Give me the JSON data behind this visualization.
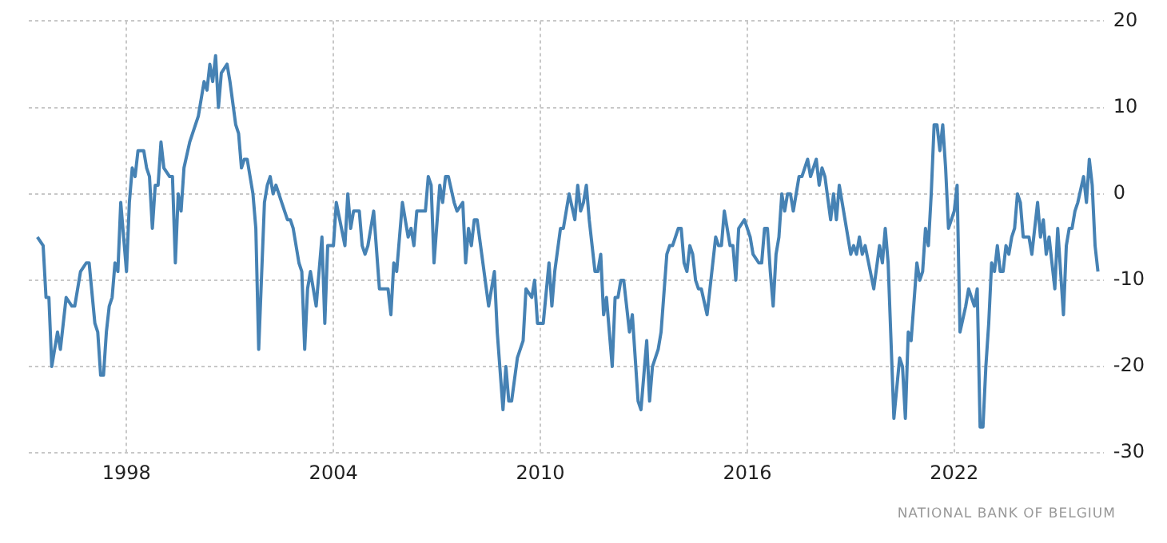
{
  "chart_data": {
    "type": "line",
    "x": [
      "1995-06",
      "1995-08",
      "1995-09",
      "1995-10",
      "1995-11",
      "1996-01",
      "1996-02",
      "1996-04",
      "1996-06",
      "1996-07",
      "1996-09",
      "1996-11",
      "1996-12",
      "1997-02",
      "1997-03",
      "1997-04",
      "1997-05",
      "1997-06",
      "1997-07",
      "1997-08",
      "1997-09",
      "1997-10",
      "1997-11",
      "1997-12",
      "1998-01",
      "1998-02",
      "1998-03",
      "1998-04",
      "1998-05",
      "1998-07",
      "1998-08",
      "1998-09",
      "1998-10",
      "1998-11",
      "1998-12",
      "1999-01",
      "1999-02",
      "1999-04",
      "1999-05",
      "1999-06",
      "1999-07",
      "1999-08",
      "1999-09",
      "1999-11",
      "2000-01",
      "2000-02",
      "2000-04",
      "2000-05",
      "2000-06",
      "2000-07",
      "2000-08",
      "2000-09",
      "2000-10",
      "2000-12",
      "2001-01",
      "2001-03",
      "2001-04",
      "2001-05",
      "2001-06",
      "2001-07",
      "2001-09",
      "2001-10",
      "2001-11",
      "2002-01",
      "2002-02",
      "2002-03",
      "2002-04",
      "2002-05",
      "2002-06",
      "2002-07",
      "2002-09",
      "2002-10",
      "2002-11",
      "2003-01",
      "2003-02",
      "2003-03",
      "2003-04",
      "2003-05",
      "2003-07",
      "2003-09",
      "2003-10",
      "2003-11",
      "2004-01",
      "2004-02",
      "2004-05",
      "2004-06",
      "2004-07",
      "2004-08",
      "2004-10",
      "2004-11",
      "2004-12",
      "2005-01",
      "2005-03",
      "2005-05",
      "2005-08",
      "2005-09",
      "2005-10",
      "2005-11",
      "2006-01",
      "2006-03",
      "2006-04",
      "2006-05",
      "2006-06",
      "2006-09",
      "2006-10",
      "2006-11",
      "2006-12",
      "2007-02",
      "2007-03",
      "2007-04",
      "2007-05",
      "2007-07",
      "2007-08",
      "2007-10",
      "2007-11",
      "2007-12",
      "2008-01",
      "2008-02",
      "2008-03",
      "2008-05",
      "2008-07",
      "2008-09",
      "2008-10",
      "2008-12",
      "2009-01",
      "2009-02",
      "2009-03",
      "2009-05",
      "2009-07",
      "2009-08",
      "2009-10",
      "2009-11",
      "2009-12",
      "2010-02",
      "2010-04",
      "2010-05",
      "2010-06",
      "2010-08",
      "2010-09",
      "2010-11",
      "2011-01",
      "2011-02",
      "2011-03",
      "2011-04",
      "2011-05",
      "2011-06",
      "2011-08",
      "2011-09",
      "2011-10",
      "2011-11",
      "2011-12",
      "2012-02",
      "2012-03",
      "2012-04",
      "2012-05",
      "2012-06",
      "2012-08",
      "2012-09",
      "2012-11",
      "2012-12",
      "2013-02",
      "2013-03",
      "2013-04",
      "2013-06",
      "2013-07",
      "2013-09",
      "2013-10",
      "2013-11",
      "2014-01",
      "2014-02",
      "2014-03",
      "2014-04",
      "2014-05",
      "2014-06",
      "2014-07",
      "2014-08",
      "2014-09",
      "2014-11",
      "2014-12",
      "2015-02",
      "2015-03",
      "2015-04",
      "2015-05",
      "2015-07",
      "2015-08",
      "2015-09",
      "2015-10",
      "2015-12",
      "2016-02",
      "2016-03",
      "2016-05",
      "2016-06",
      "2016-07",
      "2016-08",
      "2016-09",
      "2016-10",
      "2016-11",
      "2016-12",
      "2017-01",
      "2017-02",
      "2017-03",
      "2017-04",
      "2017-05",
      "2017-07",
      "2017-08",
      "2017-10",
      "2017-11",
      "2018-01",
      "2018-02",
      "2018-03",
      "2018-04",
      "2018-06",
      "2018-07",
      "2018-08",
      "2018-09",
      "2018-12",
      "2019-01",
      "2019-02",
      "2019-03",
      "2019-04",
      "2019-05",
      "2019-06",
      "2019-09",
      "2019-11",
      "2019-12",
      "2020-01",
      "2020-02",
      "2020-04",
      "2020-06",
      "2020-07",
      "2020-08",
      "2020-09",
      "2020-10",
      "2020-12",
      "2021-01",
      "2021-02",
      "2021-03",
      "2021-04",
      "2021-05",
      "2021-06",
      "2021-07",
      "2021-08",
      "2021-09",
      "2021-10",
      "2021-11",
      "2022-01",
      "2022-02",
      "2022-03",
      "2022-05",
      "2022-06",
      "2022-08",
      "2022-09",
      "2022-10",
      "2022-11",
      "2022-12",
      "2023-01",
      "2023-02",
      "2023-03",
      "2023-04",
      "2023-05",
      "2023-06",
      "2023-07",
      "2023-08",
      "2023-09",
      "2023-10",
      "2023-11",
      "2023-12",
      "2024-01",
      "2024-03",
      "2024-04",
      "2024-06",
      "2024-07",
      "2024-08",
      "2024-09",
      "2024-10",
      "2024-11",
      "2024-12",
      "2025-01",
      "2025-03",
      "2025-04",
      "2025-05",
      "2025-06",
      "2025-07",
      "2025-08",
      "2025-10",
      "2025-11",
      "2025-12",
      "2026-01",
      "2026-02",
      "2026-03"
    ],
    "series": [
      {
        "color": "#4682b4",
        "values": [
          -5,
          -6,
          -12,
          -12,
          -20,
          -16,
          -18,
          -12,
          -13,
          -13,
          -9,
          -8,
          -8,
          -15,
          -16,
          -21,
          -21,
          -16,
          -13,
          -12,
          -8,
          -9,
          -1,
          -5,
          -9,
          -1,
          3,
          2,
          5,
          5,
          3,
          2,
          -4,
          1,
          1,
          6,
          3,
          2,
          2,
          -8,
          0,
          -2,
          3,
          6,
          8,
          9,
          13,
          12,
          15,
          13,
          16,
          10,
          14,
          15,
          13,
          8,
          7,
          3,
          4,
          4,
          0,
          -4,
          -18,
          -1,
          1,
          2,
          0,
          1,
          0,
          -1,
          -3,
          -3,
          -4,
          -8,
          -9,
          -18,
          -11,
          -9,
          -13,
          -5,
          -15,
          -6,
          -6,
          -1,
          -6,
          0,
          -4,
          -2,
          -2,
          -6,
          -7,
          -6,
          -2,
          -11,
          -11,
          -14,
          -8,
          -9,
          -1,
          -5,
          -4,
          -6,
          -2,
          -2,
          2,
          1,
          -8,
          1,
          -1,
          2,
          2,
          -1,
          -2,
          -1,
          -8,
          -4,
          -6,
          -3,
          -3,
          -8,
          -13,
          -9,
          -16,
          -25,
          -20,
          -24,
          -24,
          -19,
          -17,
          -11,
          -12,
          -10,
          -15,
          -15,
          -8,
          -13,
          -9,
          -4,
          -4,
          0,
          -3,
          1,
          -2,
          -1,
          1,
          -3,
          -9,
          -9,
          -7,
          -14,
          -12,
          -20,
          -12,
          -12,
          -10,
          -10,
          -16,
          -14,
          -24,
          -25,
          -17,
          -24,
          -20,
          -18,
          -16,
          -7,
          -6,
          -6,
          -4,
          -4,
          -8,
          -9,
          -6,
          -7,
          -10,
          -11,
          -11,
          -14,
          -11,
          -5,
          -6,
          -6,
          -2,
          -6,
          -6,
          -10,
          -4,
          -3,
          -5,
          -7,
          -8,
          -8,
          -4,
          -4,
          -9,
          -13,
          -7,
          -5,
          0,
          -2,
          0,
          0,
          -2,
          2,
          2,
          4,
          2,
          4,
          1,
          3,
          2,
          -3,
          0,
          -3,
          1,
          -5,
          -7,
          -6,
          -7,
          -5,
          -7,
          -6,
          -11,
          -6,
          -8,
          -4,
          -8,
          -26,
          -19,
          -20,
          -26,
          -16,
          -17,
          -8,
          -10,
          -9,
          -4,
          -6,
          0,
          8,
          8,
          5,
          8,
          3,
          -4,
          -2,
          1,
          -16,
          -13,
          -11,
          -13,
          -11,
          -27,
          -27,
          -20,
          -15,
          -8,
          -9,
          -6,
          -9,
          -9,
          -6,
          -7,
          -5,
          -4,
          0,
          -1,
          -5,
          -5,
          -7,
          -1,
          -5,
          -3,
          -7,
          -5,
          -8,
          -11,
          -4,
          -14,
          -6,
          -4,
          -4,
          -2,
          -1,
          2,
          -1,
          4,
          1,
          -6,
          -9
        ]
      }
    ],
    "xlim": [
      "1995-03",
      "2026-05"
    ],
    "xticks": [
      "1998",
      "2004",
      "2010",
      "2016",
      "2022"
    ],
    "ylim": [
      -30,
      20
    ],
    "yticks": [
      -30,
      -20,
      -10,
      0,
      10,
      20
    ],
    "grid": true,
    "annotations": [
      "NATIONAL BANK OF BELGIUM"
    ]
  }
}
